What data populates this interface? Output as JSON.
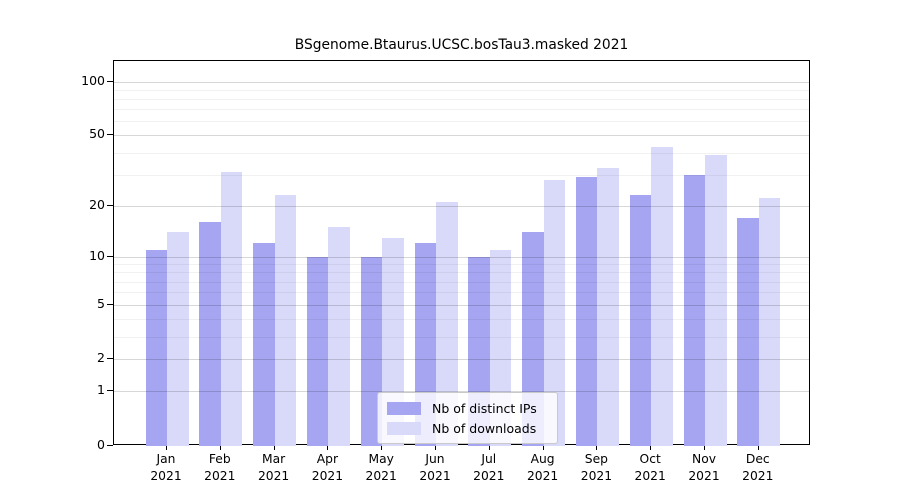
{
  "chart_data": {
    "type": "bar",
    "title": "BSgenome.Btaurus.UCSC.bosTau3.masked 2021",
    "categories": [
      "Jan",
      "Feb",
      "Mar",
      "Apr",
      "May",
      "Jun",
      "Jul",
      "Aug",
      "Sep",
      "Oct",
      "Nov",
      "Dec"
    ],
    "category_year": "2021",
    "series": [
      {
        "name": "Nb of distinct IPs",
        "color": "#a5a5f2",
        "values": [
          11,
          16,
          12,
          10,
          10,
          12,
          10,
          14,
          29,
          23,
          30,
          17
        ]
      },
      {
        "name": "Nb of downloads",
        "color": "#d9d9fa",
        "values": [
          14,
          31,
          23,
          15,
          13,
          21,
          11,
          28,
          33,
          43,
          39,
          22
        ]
      }
    ],
    "yscale": "log1p",
    "ylim": [
      0,
      130
    ],
    "ytick_labels": [
      0,
      1,
      2,
      5,
      10,
      20,
      50,
      100
    ],
    "yminor_ticks": [
      3,
      4,
      6,
      7,
      8,
      9,
      30,
      40,
      60,
      70,
      80,
      90
    ],
    "grid": true,
    "legend_position": "inside-bottom-center",
    "spine_color": "#000000",
    "major_grid_color": "#d8d8d8",
    "minor_grid_color": "#f1f1f1"
  }
}
